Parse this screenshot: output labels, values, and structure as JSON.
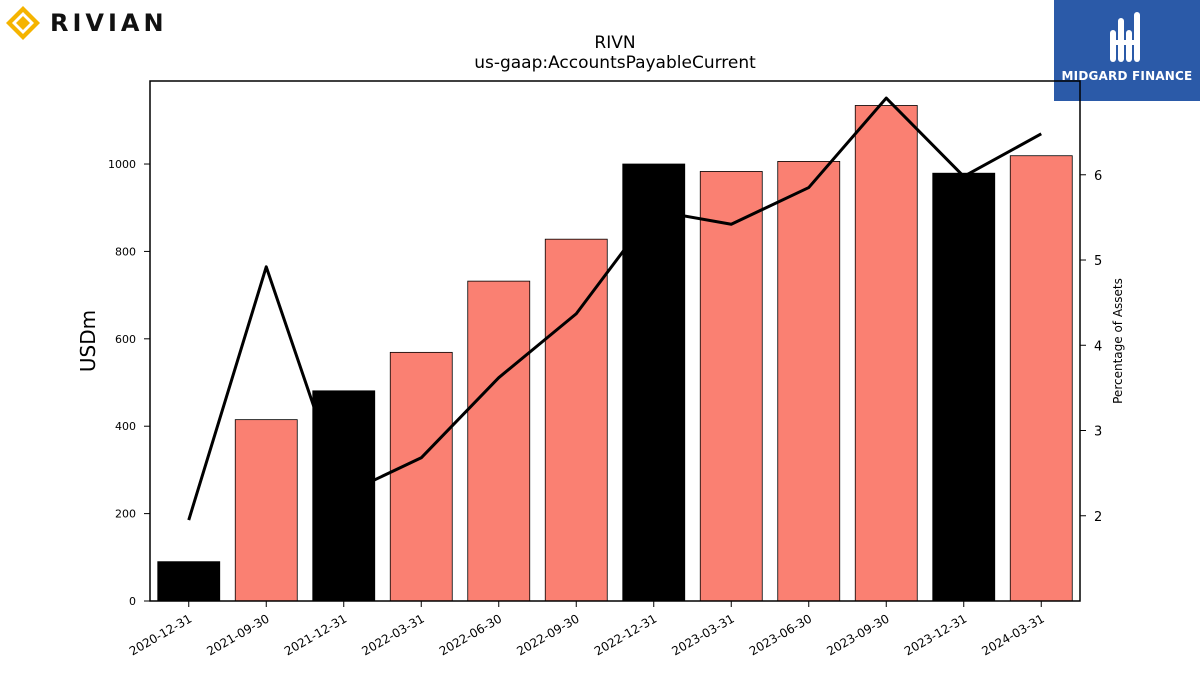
{
  "header": {
    "left_logo_text": "RIVIAN",
    "right_logo_text": "MIDGARD FINANCE"
  },
  "chart_data": {
    "type": "bar",
    "title": "RIVN",
    "subtitle": "us-gaap:AccountsPayableCurrent",
    "ylabel": "USDm",
    "y2label": "Percentage of Assets",
    "categories": [
      "2020-12-31",
      "2021-09-30",
      "2021-12-31",
      "2022-03-31",
      "2022-06-30",
      "2022-09-30",
      "2022-12-31",
      "2023-03-31",
      "2023-06-30",
      "2023-09-30",
      "2023-12-31",
      "2024-03-31"
    ],
    "bar_kinds": [
      "annual",
      "quarterly",
      "annual",
      "quarterly",
      "quarterly",
      "quarterly",
      "annual",
      "quarterly",
      "quarterly",
      "quarterly",
      "annual",
      "quarterly"
    ],
    "values": [
      90,
      415,
      481,
      569,
      732,
      828,
      1000,
      983,
      1006,
      1134,
      979,
      1019
    ],
    "line_values": [
      1.95,
      4.92,
      2.25,
      2.68,
      3.62,
      4.37,
      5.58,
      5.42,
      5.85,
      6.9,
      5.98,
      6.48
    ],
    "ylim": [
      0,
      1190
    ],
    "y2lim": [
      1.0,
      7.1
    ],
    "yticks": [
      0,
      200,
      400,
      600,
      800,
      1000
    ],
    "y2ticks": [
      2,
      3,
      4,
      5,
      6
    ],
    "colors": {
      "annual": "#000000",
      "quarterly": "#fa8072",
      "line": "#000000"
    },
    "grid": false
  }
}
